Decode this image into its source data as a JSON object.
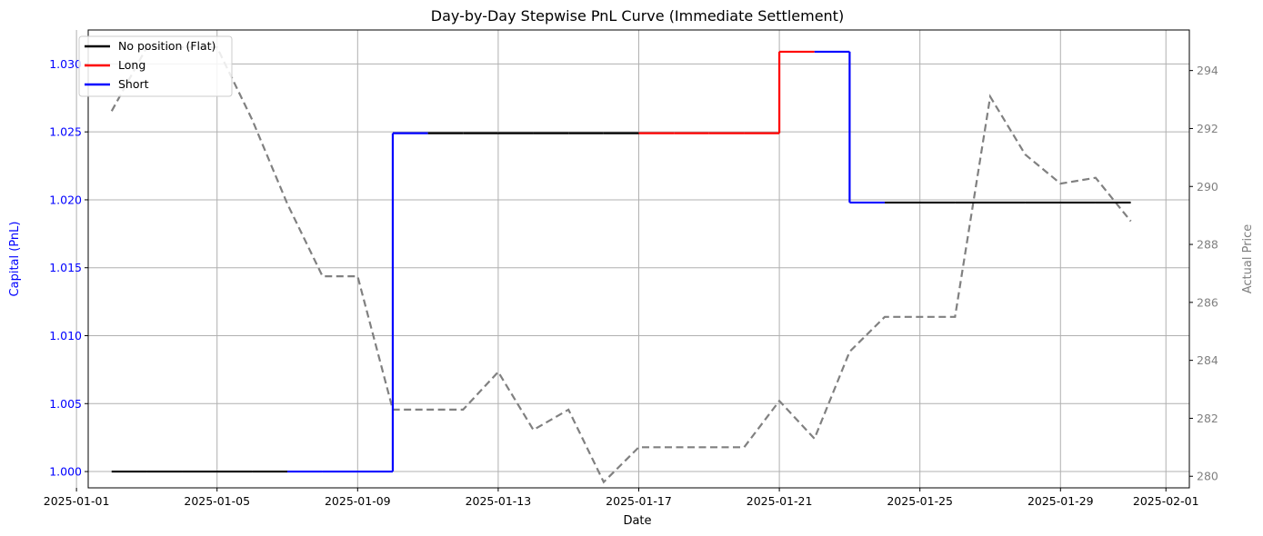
{
  "chart_data": {
    "type": "line",
    "title": "Day-by-Day Stepwise PnL Curve (Immediate Settlement)",
    "xlabel": "Date",
    "ylabel_left": "Capital (PnL)",
    "ylabel_right": "Actual Price",
    "x_ticks": [
      "2025-01-01",
      "2025-01-05",
      "2025-01-09",
      "2025-01-13",
      "2025-01-17",
      "2025-01-21",
      "2025-01-25",
      "2025-01-29",
      "2025-02-01"
    ],
    "x_range": [
      "2025-01-01 08:00",
      "2025-02-01 16:00"
    ],
    "y_left": {
      "range": [
        0.9988,
        1.0325
      ],
      "ticks": [
        "1.000",
        "1.005",
        "1.010",
        "1.015",
        "1.020",
        "1.025",
        "1.030"
      ],
      "color": "#0000ff"
    },
    "y_right": {
      "range": [
        279.6,
        295.4
      ],
      "ticks": [
        "280",
        "282",
        "284",
        "286",
        "288",
        "290",
        "292",
        "294"
      ],
      "color": "#808080"
    },
    "grid": true,
    "legend_position": "top-left",
    "legend": [
      {
        "label": "No position (Flat)",
        "color": "#000000"
      },
      {
        "label": "Long",
        "color": "#ff0000"
      },
      {
        "label": "Short",
        "color": "#0000ff"
      }
    ],
    "pnl_segments": [
      {
        "start": "2025-01-02",
        "end": "2025-01-03",
        "value": 1.0,
        "position": "flat"
      },
      {
        "start": "2025-01-03",
        "end": "2025-01-04",
        "value": 1.0,
        "position": "flat"
      },
      {
        "start": "2025-01-04",
        "end": "2025-01-05",
        "value": 1.0,
        "position": "flat"
      },
      {
        "start": "2025-01-05",
        "end": "2025-01-06",
        "value": 1.0,
        "position": "flat"
      },
      {
        "start": "2025-01-06",
        "end": "2025-01-07",
        "value": 1.0,
        "position": "flat"
      },
      {
        "start": "2025-01-07",
        "end": "2025-01-08",
        "value": 1.0,
        "position": "short"
      },
      {
        "start": "2025-01-08",
        "end": "2025-01-09",
        "value": 1.0,
        "position": "short"
      },
      {
        "start": "2025-01-09",
        "end": "2025-01-10",
        "value": 1.0,
        "position": "short"
      },
      {
        "start": "2025-01-10",
        "end": "2025-01-11",
        "value": 1.0249,
        "position": "short"
      },
      {
        "start": "2025-01-11",
        "end": "2025-01-12",
        "value": 1.0249,
        "position": "flat"
      },
      {
        "start": "2025-01-12",
        "end": "2025-01-13",
        "value": 1.0249,
        "position": "flat"
      },
      {
        "start": "2025-01-13",
        "end": "2025-01-14",
        "value": 1.0249,
        "position": "flat"
      },
      {
        "start": "2025-01-14",
        "end": "2025-01-15",
        "value": 1.0249,
        "position": "flat"
      },
      {
        "start": "2025-01-15",
        "end": "2025-01-16",
        "value": 1.0249,
        "position": "flat"
      },
      {
        "start": "2025-01-16",
        "end": "2025-01-17",
        "value": 1.0249,
        "position": "flat"
      },
      {
        "start": "2025-01-17",
        "end": "2025-01-18",
        "value": 1.0249,
        "position": "long"
      },
      {
        "start": "2025-01-18",
        "end": "2025-01-19",
        "value": 1.0249,
        "position": "long"
      },
      {
        "start": "2025-01-19",
        "end": "2025-01-20",
        "value": 1.0249,
        "position": "long"
      },
      {
        "start": "2025-01-20",
        "end": "2025-01-21",
        "value": 1.0249,
        "position": "long"
      },
      {
        "start": "2025-01-21",
        "end": "2025-01-22",
        "value": 1.0309,
        "position": "long"
      },
      {
        "start": "2025-01-22",
        "end": "2025-01-23",
        "value": 1.0309,
        "position": "short"
      },
      {
        "start": "2025-01-23",
        "end": "2025-01-24",
        "value": 1.0198,
        "position": "short"
      },
      {
        "start": "2025-01-24",
        "end": "2025-01-25",
        "value": 1.0198,
        "position": "flat"
      },
      {
        "start": "2025-01-25",
        "end": "2025-01-26",
        "value": 1.0198,
        "position": "flat"
      },
      {
        "start": "2025-01-26",
        "end": "2025-01-27",
        "value": 1.0198,
        "position": "flat"
      },
      {
        "start": "2025-01-27",
        "end": "2025-01-28",
        "value": 1.0198,
        "position": "flat"
      },
      {
        "start": "2025-01-28",
        "end": "2025-01-29",
        "value": 1.0198,
        "position": "flat"
      },
      {
        "start": "2025-01-29",
        "end": "2025-01-30",
        "value": 1.0198,
        "position": "flat"
      },
      {
        "start": "2025-01-30",
        "end": "2025-01-31",
        "value": 1.0198,
        "position": "flat"
      }
    ],
    "price_series": {
      "style": "dashed",
      "color": "#808080",
      "x": [
        "2025-01-02",
        "2025-01-03",
        "2025-01-04",
        "2025-01-05",
        "2025-01-06",
        "2025-01-07",
        "2025-01-08",
        "2025-01-09",
        "2025-01-10",
        "2025-01-11",
        "2025-01-12",
        "2025-01-13",
        "2025-01-14",
        "2025-01-15",
        "2025-01-16",
        "2025-01-17",
        "2025-01-18",
        "2025-01-19",
        "2025-01-20",
        "2025-01-21",
        "2025-01-22",
        "2025-01-23",
        "2025-01-24",
        "2025-01-25",
        "2025-01-26",
        "2025-01-27",
        "2025-01-28",
        "2025-01-29",
        "2025-01-30",
        "2025-01-31"
      ],
      "y": [
        292.6,
        294.8,
        294.8,
        294.8,
        292.3,
        289.4,
        286.9,
        286.9,
        282.3,
        282.3,
        282.3,
        283.6,
        281.6,
        282.3,
        279.8,
        281.0,
        281.0,
        281.0,
        281.0,
        282.6,
        281.3,
        284.3,
        285.5,
        285.5,
        285.5,
        293.1,
        291.1,
        290.1,
        290.3,
        288.8
      ]
    }
  }
}
